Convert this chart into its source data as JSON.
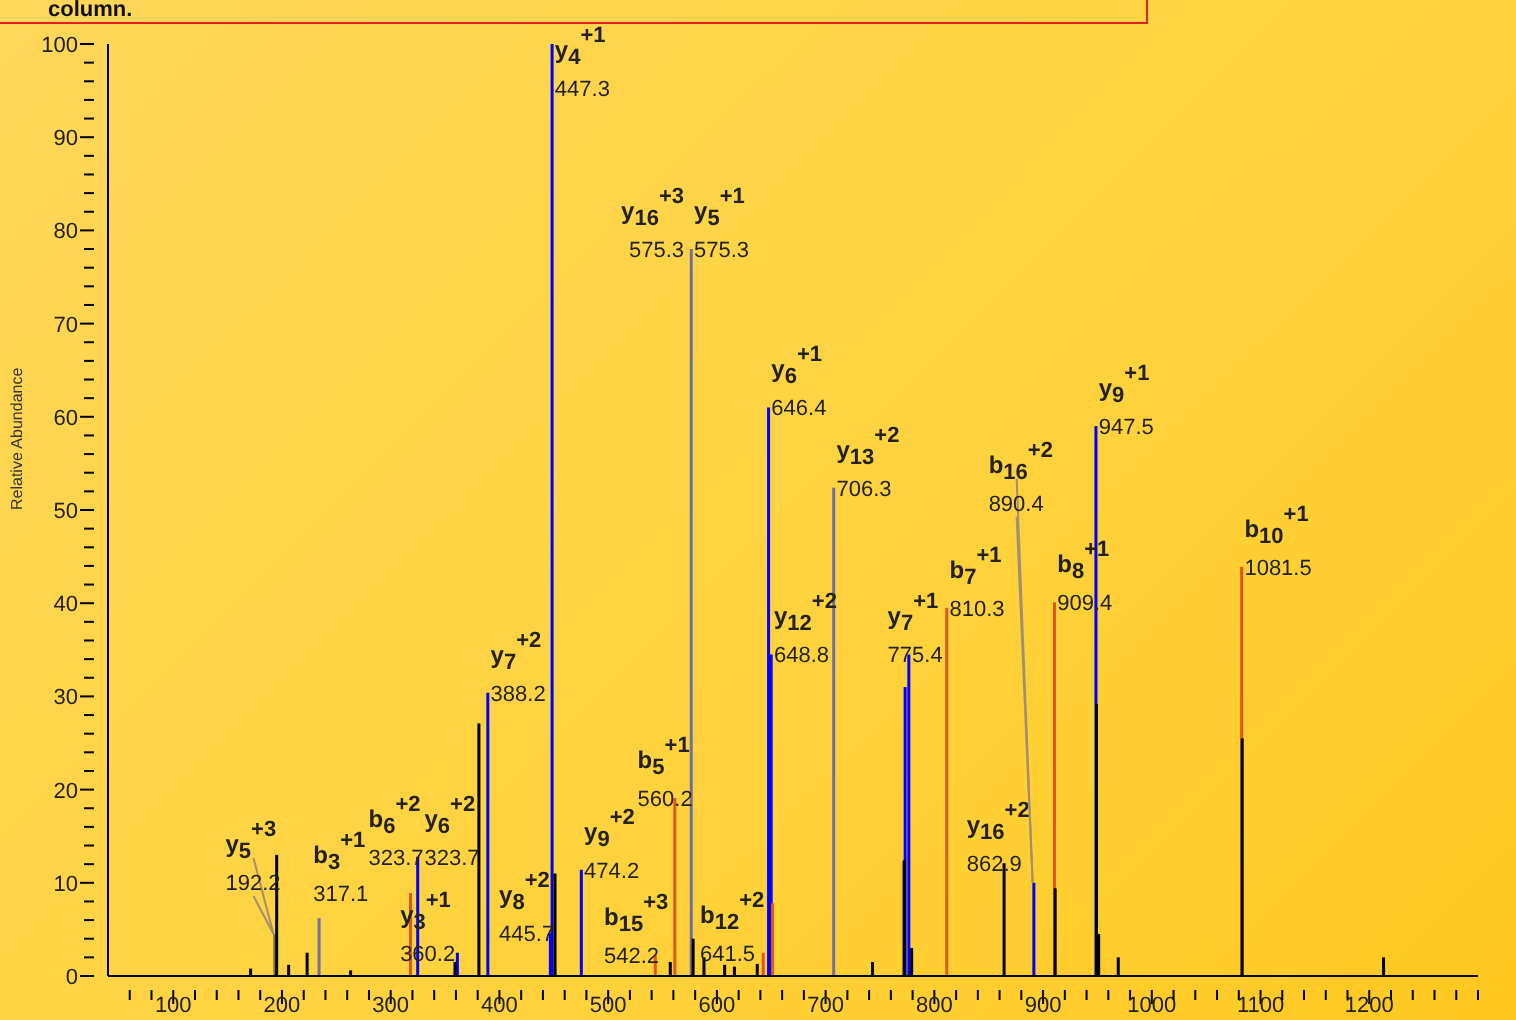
{
  "chart_data": {
    "type": "bar",
    "ylabel": "Relative Abundance",
    "series": [
      {
        "color": "#0000ff",
        "x": [
          323.7,
          360.2,
          388.2,
          445.7,
          447.3,
          474.2,
          646.4,
          648.8,
          772,
          775.4,
          890.4,
          947.5
        ],
        "values": [
          12.8,
          2.5,
          30.4,
          4.6,
          100,
          11.4,
          61,
          34.5,
          31,
          34.5,
          10,
          59
        ]
      },
      {
        "color": "#7070a0",
        "x": [
          233,
          575.3,
          706.3
        ],
        "values": [
          6.2,
          78,
          52.4
        ]
      },
      {
        "color": "#e0561c",
        "x": [
          317.1,
          542.2,
          560.2,
          641.5,
          650,
          810.3,
          909.4,
          1081.5
        ],
        "values": [
          8.9,
          2.3,
          19.1,
          2.5,
          7.8,
          39.5,
          40.1,
          43.9
        ]
      },
      {
        "color": "#8a7a30",
        "x": [
          192.2
        ],
        "values": [
          4.5
        ]
      },
      {
        "color": "#000000",
        "x": [
          170,
          194,
          205,
          222,
          262,
          358,
          380,
          450,
          556,
          577,
          587,
          606,
          615,
          636,
          742,
          771,
          778,
          863,
          910,
          948,
          950,
          968,
          1082,
          1212
        ],
        "values": [
          0.8,
          13,
          1.2,
          2.5,
          0.6,
          1.5,
          27.1,
          11,
          1.5,
          4,
          2,
          1.2,
          1,
          1.3,
          1.5,
          12.4,
          3,
          12.1,
          9.4,
          29.2,
          4.5,
          2,
          25.5,
          2
        ]
      }
    ],
    "xlim": [
      40,
      1300
    ],
    "xticks": [
      {
        "value": 60,
        "label": null
      },
      {
        "value": 80,
        "label": null
      },
      100,
      {
        "value": 120,
        "label": null
      },
      {
        "value": 140,
        "label": null
      },
      {
        "value": 160,
        "label": null
      },
      {
        "value": 180,
        "label": null
      },
      200,
      {
        "value": 220,
        "label": null
      },
      {
        "value": 240,
        "label": null
      },
      {
        "value": 260,
        "label": null
      },
      {
        "value": 280,
        "label": null
      },
      300,
      {
        "value": 320,
        "label": null
      },
      {
        "value": 340,
        "label": null
      },
      {
        "value": 360,
        "label": null
      },
      {
        "value": 380,
        "label": null
      },
      400,
      {
        "value": 420,
        "label": null
      },
      {
        "value": 440,
        "label": null
      },
      {
        "value": 460,
        "label": null
      },
      {
        "value": 480,
        "label": null
      },
      500,
      {
        "value": 520,
        "label": null
      },
      {
        "value": 540,
        "label": null
      },
      {
        "value": 560,
        "label": null
      },
      {
        "value": 580,
        "label": null
      },
      600,
      {
        "value": 620,
        "label": null
      },
      {
        "value": 640,
        "label": null
      },
      {
        "value": 660,
        "label": null
      },
      {
        "value": 680,
        "label": null
      },
      700,
      {
        "value": 720,
        "label": null
      },
      {
        "value": 740,
        "label": null
      },
      {
        "value": 760,
        "label": null
      },
      {
        "value": 780,
        "label": null
      },
      800,
      {
        "value": 820,
        "label": null
      },
      {
        "value": 840,
        "label": null
      },
      {
        "value": 860,
        "label": null
      },
      {
        "value": 880,
        "label": null
      },
      900,
      {
        "value": 920,
        "label": null
      },
      {
        "value": 940,
        "label": null
      },
      {
        "value": 960,
        "label": null
      },
      {
        "value": 980,
        "label": null
      },
      1000,
      {
        "value": 1020,
        "label": null
      },
      {
        "value": 1040,
        "label": null
      },
      {
        "value": 1060,
        "label": null
      },
      {
        "value": 1080,
        "label": null
      },
      1100,
      {
        "value": 1120,
        "label": null
      },
      {
        "value": 1140,
        "label": null
      },
      {
        "value": 1160,
        "label": null
      },
      {
        "value": 1180,
        "label": null
      },
      1200,
      {
        "value": 1220,
        "label": null
      },
      {
        "value": 1240,
        "label": null
      },
      {
        "value": 1260,
        "label": null
      },
      {
        "value": 1280,
        "label": null
      },
      {
        "value": 1300,
        "label": null
      }
    ],
    "ylim": [
      0,
      100
    ],
    "yticks": [
      0,
      {
        "value": 2,
        "label": null
      },
      {
        "value": 4,
        "label": null
      },
      {
        "value": 6,
        "label": null
      },
      {
        "value": 8,
        "label": null
      },
      10,
      {
        "value": 12,
        "label": null
      },
      {
        "value": 14,
        "label": null
      },
      {
        "value": 16,
        "label": null
      },
      {
        "value": 18,
        "label": null
      },
      20,
      {
        "value": 22,
        "label": null
      },
      {
        "value": 24,
        "label": null
      },
      {
        "value": 26,
        "label": null
      },
      {
        "value": 28,
        "label": null
      },
      30,
      {
        "value": 32,
        "label": null
      },
      {
        "value": 34,
        "label": null
      },
      {
        "value": 36,
        "label": null
      },
      {
        "value": 38,
        "label": null
      },
      40,
      {
        "value": 42,
        "label": null
      },
      {
        "value": 44,
        "label": null
      },
      {
        "value": 46,
        "label": null
      },
      {
        "value": 48,
        "label": null
      },
      50,
      {
        "value": 52,
        "label": null
      },
      {
        "value": 54,
        "label": null
      },
      {
        "value": 56,
        "label": null
      },
      {
        "value": 58,
        "label": null
      },
      60,
      {
        "value": 62,
        "label": null
      },
      {
        "value": 64,
        "label": null
      },
      {
        "value": 66,
        "label": null
      },
      {
        "value": 68,
        "label": null
      },
      70,
      {
        "value": 72,
        "label": null
      },
      {
        "value": 74,
        "label": null
      },
      {
        "value": 76,
        "label": null
      },
      {
        "value": 78,
        "label": null
      },
      80,
      {
        "value": 82,
        "label": null
      },
      {
        "value": 84,
        "label": null
      },
      {
        "value": 86,
        "label": null
      },
      {
        "value": 88,
        "label": null
      },
      90,
      {
        "value": 92,
        "label": null
      },
      {
        "value": 94,
        "label": null
      },
      {
        "value": 96,
        "label": null
      },
      {
        "value": 98,
        "label": null
      },
      100
    ],
    "annotations": [
      "column.",
      {
        "text": "y$_{5}$$^{+3}$",
        "x": 192.2,
        "y": 4.5
      },
      {
        "text": "192.2",
        "x": 192.2,
        "y": 4.5
      },
      {
        "text": "b$_{3}$$^{+1}$",
        "x": 317.1,
        "y": 8.9
      },
      {
        "text": "317.1",
        "x": 317.1,
        "y": 8.9
      },
      {
        "text": "b$_{6}$$^{+2}$",
        "x": 323.7,
        "y": 12.8
      },
      {
        "text": "323.7",
        "x": 323.7,
        "y": 12.8
      },
      {
        "text": "y$_{6}$$^{+2}$",
        "x": 323.7,
        "y": 12.8
      },
      {
        "text": "323.7",
        "x": 323.7,
        "y": 12.8
      },
      {
        "text": "y$_{3}$$^{+1}$",
        "x": 360.2,
        "y": 2.5
      },
      {
        "text": "360.2",
        "x": 360.2,
        "y": 2.5
      },
      {
        "text": "y$_{7}$$^{+2}$",
        "x": 388.2,
        "y": 30.4
      },
      {
        "text": "388.2",
        "x": 388.2,
        "y": 30.4
      },
      {
        "text": "y$_{4}$$^{+1}$",
        "x": 447.3,
        "y": 100
      },
      {
        "text": "447.3",
        "x": 447.3,
        "y": 100
      },
      {
        "text": "y$_{8}$$^{+2}$",
        "x": 445.7,
        "y": 4.6
      },
      {
        "text": "445.7",
        "x": 445.7,
        "y": 4.6
      },
      {
        "text": "y$_{9}$$^{+2}$",
        "x": 474.2,
        "y": 11.4
      },
      {
        "text": "474.2",
        "x": 474.2,
        "y": 11.4
      },
      {
        "text": "b$_{15}$$^{+3}$",
        "x": 542.2,
        "y": 2.3
      },
      {
        "text": "542.2",
        "x": 542.2,
        "y": 2.3
      },
      {
        "text": "b$_{5}$$^{+1}$",
        "x": 560.2,
        "y": 19.1
      },
      {
        "text": "560.2",
        "x": 560.2,
        "y": 19.1
      },
      {
        "text": "y$_{16}$$^{+3}$",
        "x": 575.3,
        "y": 78
      },
      {
        "text": "575.3",
        "x": 575.3,
        "y": 78
      },
      {
        "text": "y$_{5}$$^{+1}$",
        "x": 575.3,
        "y": 78
      },
      {
        "text": "575.3",
        "x": 575.3,
        "y": 78
      },
      {
        "text": "b$_{12}$$^{+2}$",
        "x": 641.5,
        "y": 2.5
      },
      {
        "text": "641.5",
        "x": 641.5,
        "y": 2.5
      },
      {
        "text": "y$_{6}$$^{+1}$",
        "x": 646.4,
        "y": 61
      },
      {
        "text": "646.4",
        "x": 646.4,
        "y": 61
      },
      {
        "text": "y$_{12}$$^{+2}$",
        "x": 648.8,
        "y": 34.5
      },
      {
        "text": "648.8",
        "x": 648.8,
        "y": 34.5
      },
      {
        "text": "y$_{13}$$^{+2}$",
        "x": 706.3,
        "y": 52.4
      },
      {
        "text": "706.3",
        "x": 706.3,
        "y": 52.4
      },
      {
        "text": "y$_{7}$$^{+1}$",
        "x": 775.4,
        "y": 34.5
      },
      {
        "text": "775.4",
        "x": 775.4,
        "y": 34.5
      },
      {
        "text": "b$_{7}$$^{+1}$",
        "x": 810.3,
        "y": 39.5
      },
      {
        "text": "810.3",
        "x": 810.3,
        "y": 39.5
      },
      {
        "text": "y$_{16}$$^{+2}$",
        "x": 862.9,
        "y": 12.1
      },
      {
        "text": "862.9",
        "x": 862.9,
        "y": 12.1
      },
      {
        "text": "b$_{16}$$^{+2}$",
        "x": 890.4,
        "y": 10
      },
      {
        "text": "890.4",
        "x": 890.4,
        "y": 10
      },
      {
        "text": "b$_{8}$$^{+1}$",
        "x": 909.4,
        "y": 40.1
      },
      {
        "text": "909.4",
        "x": 909.4,
        "y": 40.1
      },
      {
        "text": "y$_{9}$$^{+1}$",
        "x": 947.5,
        "y": 59
      },
      {
        "text": "947.5",
        "x": 947.5,
        "y": 59
      },
      {
        "text": "b$_{10}$$^{+1}$",
        "x": 1081.5,
        "y": 43.9
      },
      {
        "text": "1081.5",
        "x": 1081.5,
        "y": 43.9
      }
    ]
  }
}
